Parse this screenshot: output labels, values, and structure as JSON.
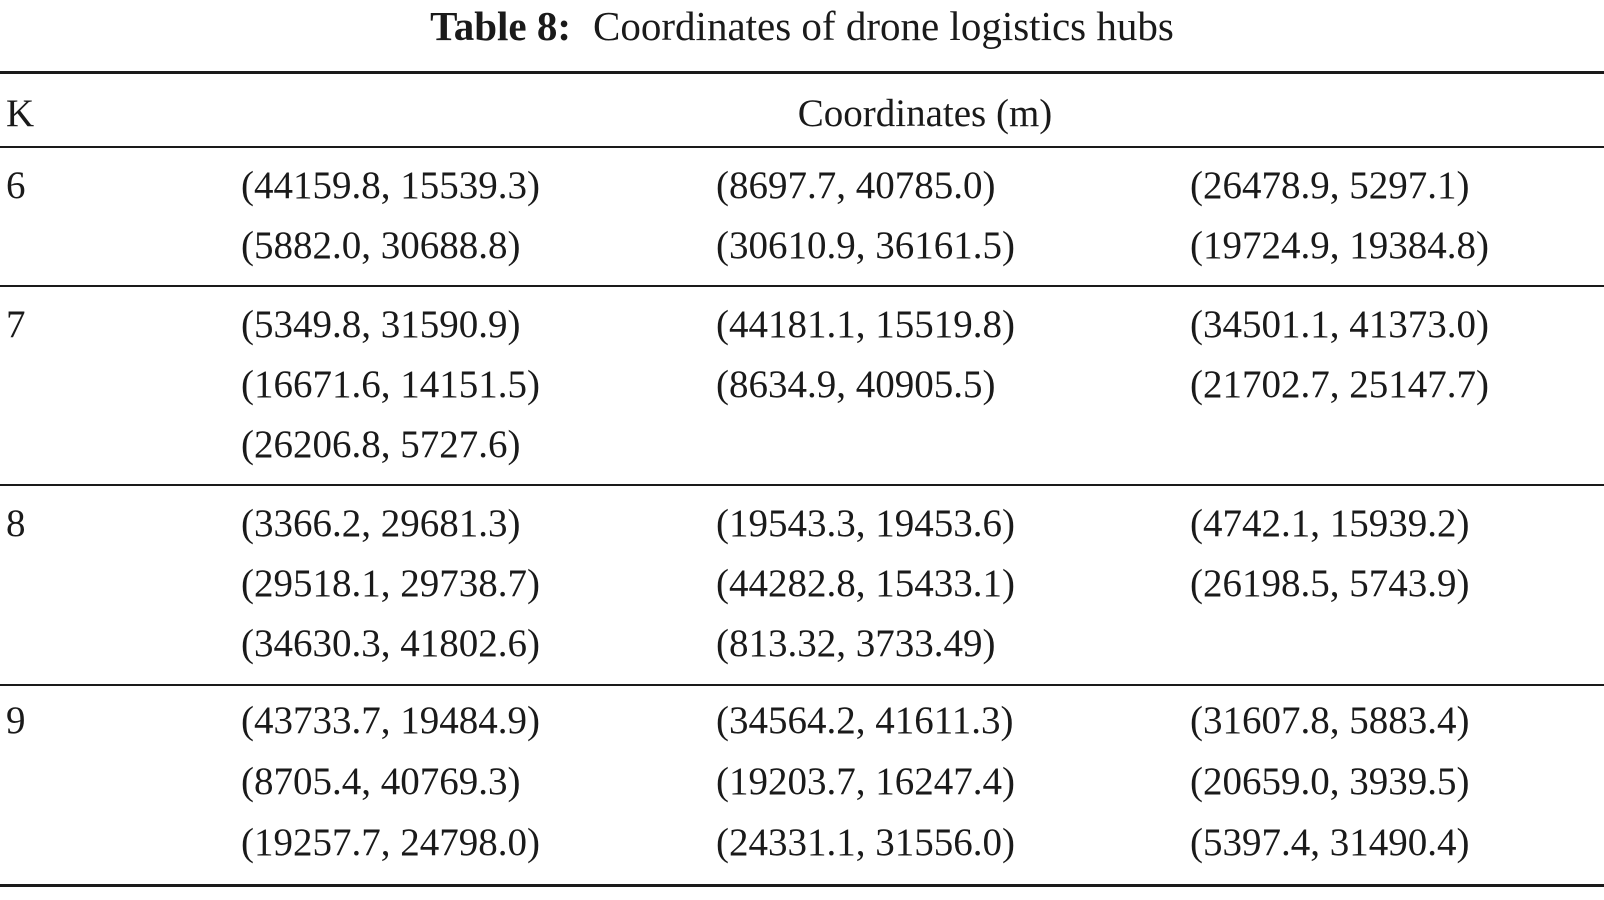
{
  "caption": {
    "label": "Table 8:",
    "text": "Coordinates of drone logistics hubs"
  },
  "header": {
    "k": "K",
    "coordinates": "Coordinates (m)"
  },
  "groups": [
    {
      "k": "6",
      "rows": [
        [
          "(44159.8, 15539.3)",
          "(8697.7, 40785.0)",
          "(26478.9, 5297.1)"
        ],
        [
          "(5882.0, 30688.8)",
          "(30610.9, 36161.5)",
          "(19724.9, 19384.8)"
        ]
      ]
    },
    {
      "k": "7",
      "rows": [
        [
          "(5349.8, 31590.9)",
          "(44181.1, 15519.8)",
          "(34501.1, 41373.0)"
        ],
        [
          "(16671.6, 14151.5)",
          "(8634.9, 40905.5)",
          "(21702.7, 25147.7)"
        ],
        [
          "(26206.8, 5727.6)",
          "",
          ""
        ]
      ]
    },
    {
      "k": "8",
      "rows": [
        [
          "(3366.2, 29681.3)",
          "(19543.3, 19453.6)",
          "(4742.1, 15939.2)"
        ],
        [
          "(29518.1, 29738.7)",
          "(44282.8, 15433.1)",
          "(26198.5, 5743.9)"
        ],
        [
          "(34630.3, 41802.6)",
          "(813.32, 3733.49)",
          ""
        ]
      ]
    },
    {
      "k": "9",
      "rows": [
        [
          "(43733.7, 19484.9)",
          "(34564.2, 41611.3)",
          "(31607.8, 5883.4)"
        ],
        [
          "(8705.4, 40769.3)",
          "(19203.7, 16247.4)",
          "(20659.0, 3939.5)"
        ],
        [
          "(19257.7, 24798.0)",
          "(24331.1, 31556.0)",
          "(5397.4, 31490.4)"
        ]
      ]
    }
  ]
}
